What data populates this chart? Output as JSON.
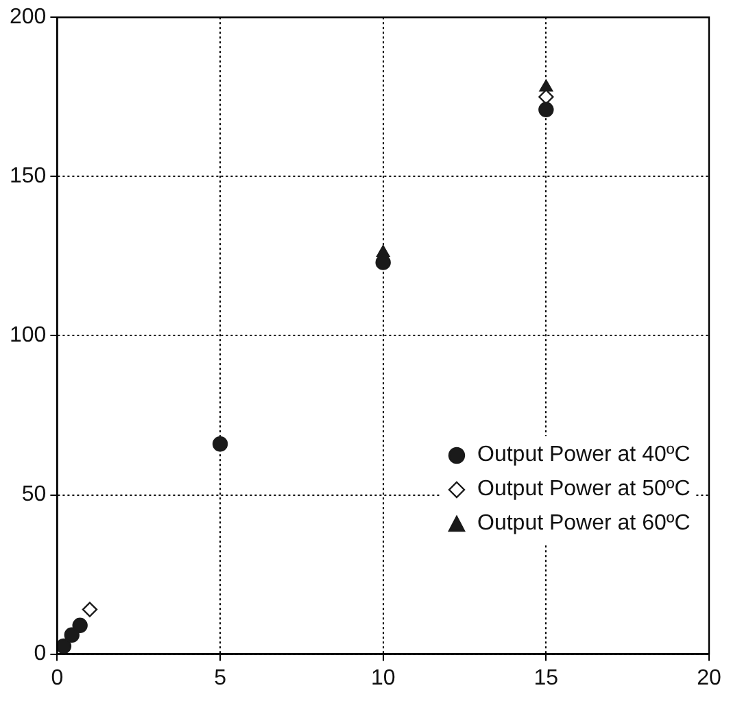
{
  "chart_data": {
    "type": "scatter",
    "xlim": [
      0,
      20
    ],
    "ylim": [
      0,
      200
    ],
    "xticks": [
      0,
      5,
      10,
      15,
      20
    ],
    "yticks": [
      0,
      50,
      100,
      150,
      200
    ],
    "grid": true,
    "legend": "bottom right",
    "series": [
      {
        "name": "Output Power at 40ºC",
        "color": "#1a1a1a",
        "marker": "circle",
        "x": [
          0.2,
          0.45,
          0.7,
          5,
          10,
          15
        ],
        "values": [
          2.5,
          6,
          9,
          66,
          123,
          171
        ]
      },
      {
        "name": "Output Power at 50ºC",
        "color": "#1a1a1a",
        "marker": "diamond",
        "x": [
          1,
          15
        ],
        "values": [
          14,
          175
        ]
      },
      {
        "name": "Output Power at 60ºC",
        "color": "#1a1a1a",
        "marker": "triangle",
        "x": [
          10,
          15
        ],
        "values": [
          126,
          178
        ]
      }
    ]
  }
}
